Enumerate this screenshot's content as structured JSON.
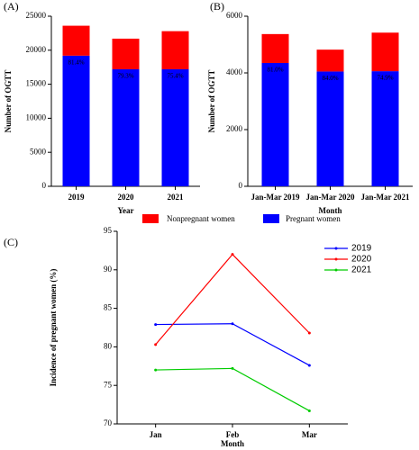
{
  "chart_data": [
    {
      "type": "stacked_bar",
      "title": "(A)",
      "xlabel": "Year",
      "ylabel": "Number of OGTT",
      "categories": [
        "2019",
        "2020",
        "2021"
      ],
      "series": [
        {
          "name": "Pregnant women",
          "color": "#0000ff",
          "values": [
            19200,
            17200,
            17200
          ]
        },
        {
          "name": "Nonpregnant women",
          "color": "#ff0000",
          "values": [
            4400,
            4500,
            5600
          ]
        }
      ],
      "annotations": [
        "81.4%",
        "79.3%",
        "75.4%"
      ],
      "ylim": [
        0,
        25000
      ],
      "yticks": [
        0,
        5000,
        10000,
        15000,
        20000,
        25000
      ]
    },
    {
      "type": "stacked_bar",
      "title": "(B)",
      "xlabel": "Month",
      "ylabel": "Number of OGTT",
      "categories": [
        "Jan-Mar 2019",
        "Jan-Mar 2020",
        "Jan-Mar 2021"
      ],
      "series": [
        {
          "color": "#0000ff",
          "values": [
            4350,
            4050,
            4060
          ]
        },
        {
          "color": "#ff0000",
          "values": [
            1020,
            770,
            1360
          ]
        }
      ],
      "annotations": [
        "81.0%",
        "84.0%",
        "74.9%"
      ],
      "ylim": [
        0,
        6000
      ],
      "yticks": [
        0,
        2000,
        4000,
        6000
      ]
    },
    {
      "type": "line",
      "title": "(C)",
      "xlabel": "Month",
      "ylabel": "Incidence of pregnant women (%)",
      "categories": [
        "Jan",
        "Feb",
        "Mar"
      ],
      "series": [
        {
          "name": "2019",
          "color": "#0000ff",
          "values": [
            82.9,
            83.0,
            77.6
          ]
        },
        {
          "name": "2020",
          "color": "#ff0000",
          "values": [
            80.3,
            92.0,
            81.8
          ]
        },
        {
          "name": "2021",
          "color": "#00cc00",
          "values": [
            77.0,
            77.2,
            71.7
          ]
        }
      ],
      "ylim": [
        70,
        95
      ],
      "yticks": [
        70,
        75,
        80,
        85,
        90,
        95
      ]
    }
  ]
}
